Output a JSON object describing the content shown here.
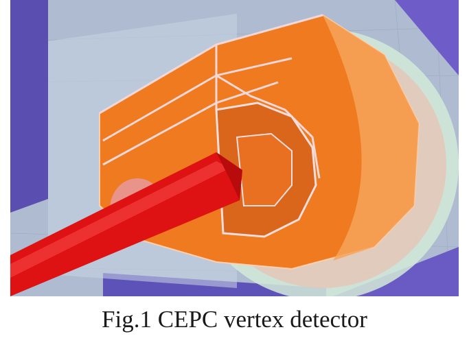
{
  "figure": {
    "caption": "Fig.1 CEPC vertex detector"
  }
}
